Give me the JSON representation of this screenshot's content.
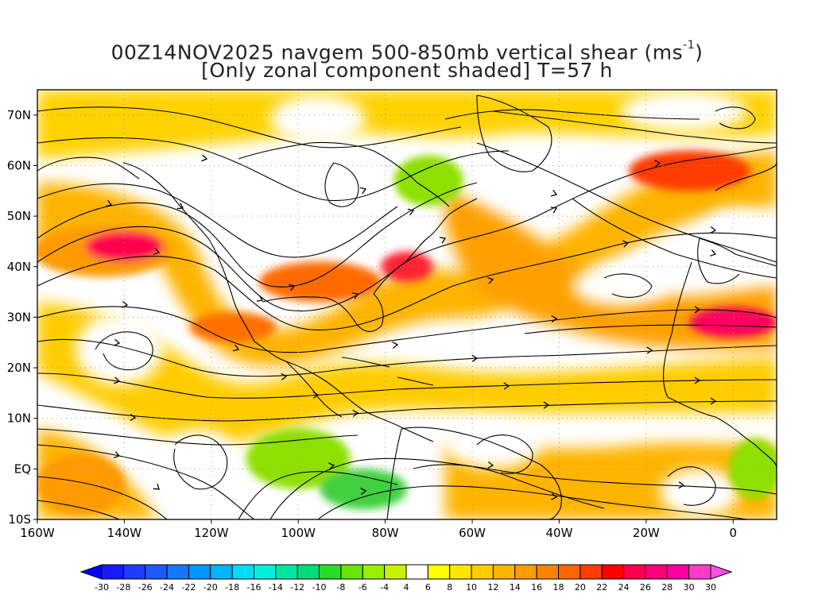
{
  "title": {
    "line1_prefix": "00Z14NOV2025 navgem 500-850mb vertical shear (ms",
    "line1_sup": "-1",
    "line1_suffix": ")",
    "line2": "[Only zonal component shaded] T=57 h"
  },
  "map": {
    "lon_range": [
      -160,
      10
    ],
    "lat_range": [
      -10,
      75
    ],
    "background": "#ffffff",
    "x_ticks": [
      {
        "lon": -160,
        "label": "160W"
      },
      {
        "lon": -140,
        "label": "140W"
      },
      {
        "lon": -120,
        "label": "120W"
      },
      {
        "lon": -100,
        "label": "100W"
      },
      {
        "lon": -80,
        "label": "80W"
      },
      {
        "lon": -60,
        "label": "60W"
      },
      {
        "lon": -40,
        "label": "40W"
      },
      {
        "lon": -20,
        "label": "20W"
      },
      {
        "lon": 0,
        "label": "0"
      }
    ],
    "y_ticks": [
      {
        "lat": 70,
        "label": "70N"
      },
      {
        "lat": 60,
        "label": "60N"
      },
      {
        "lat": 50,
        "label": "50N"
      },
      {
        "lat": 40,
        "label": "40N"
      },
      {
        "lat": 30,
        "label": "30N"
      },
      {
        "lat": 20,
        "label": "20N"
      },
      {
        "lat": 10,
        "label": "10N"
      },
      {
        "lat": 0,
        "label": "EQ"
      },
      {
        "lat": -10,
        "label": "10S"
      }
    ],
    "shading_blobs": [
      {
        "lon": -145,
        "lat": 43,
        "rx": 16,
        "ry": 5,
        "color": "#ff9a00"
      },
      {
        "lon": -140,
        "lat": 44,
        "rx": 9,
        "ry": 3,
        "color": "#ff0050"
      },
      {
        "lon": -95,
        "lat": 37,
        "rx": 14,
        "ry": 4,
        "color": "#ff6a00"
      },
      {
        "lon": -75,
        "lat": 40,
        "rx": 6,
        "ry": 3,
        "color": "#ff2030"
      },
      {
        "lon": -115,
        "lat": 28,
        "rx": 10,
        "ry": 3,
        "color": "#ff7000"
      },
      {
        "lon": 0,
        "lat": 29,
        "rx": 10,
        "ry": 3,
        "color": "#ff0060"
      },
      {
        "lon": -10,
        "lat": 59,
        "rx": 14,
        "ry": 4,
        "color": "#ff3a00"
      },
      {
        "lon": -100,
        "lat": 2,
        "rx": 12,
        "ry": 6,
        "color": "#8ee000"
      },
      {
        "lon": -85,
        "lat": -4,
        "rx": 10,
        "ry": 4,
        "color": "#40d040"
      },
      {
        "lon": -70,
        "lat": 57,
        "rx": 8,
        "ry": 5,
        "color": "#8ee000"
      },
      {
        "lon": 5,
        "lat": 0,
        "rx": 6,
        "ry": 6,
        "color": "#8ee000"
      },
      {
        "lon": -150,
        "lat": -3,
        "rx": 10,
        "ry": 6,
        "color": "#ff9a00"
      }
    ]
  },
  "colorbar": {
    "min_label": "-30",
    "max_label": "30",
    "segments": [
      {
        "label": "-30",
        "color": "#1a1aff"
      },
      {
        "label": "-28",
        "color": "#1e3cff"
      },
      {
        "label": "-26",
        "color": "#1e5aff"
      },
      {
        "label": "-24",
        "color": "#1478ff"
      },
      {
        "label": "-22",
        "color": "#0096ff"
      },
      {
        "label": "-20",
        "color": "#00b4ff"
      },
      {
        "label": "-18",
        "color": "#00dcff"
      },
      {
        "label": "-16",
        "color": "#00f0dc"
      },
      {
        "label": "-14",
        "color": "#00e6a0"
      },
      {
        "label": "-12",
        "color": "#00dc78"
      },
      {
        "label": "-10",
        "color": "#28dc28"
      },
      {
        "label": "-8",
        "color": "#64e600"
      },
      {
        "label": "-6",
        "color": "#96f000"
      },
      {
        "label": "-4",
        "color": "#c8f000"
      },
      {
        "label": "4",
        "color": "#ffffff"
      },
      {
        "label": "6",
        "color": "#ffff00"
      },
      {
        "label": "8",
        "color": "#ffe600"
      },
      {
        "label": "10",
        "color": "#ffcc00"
      },
      {
        "label": "12",
        "color": "#ffb400"
      },
      {
        "label": "14",
        "color": "#ff9c00"
      },
      {
        "label": "16",
        "color": "#ff8200"
      },
      {
        "label": "18",
        "color": "#ff6400"
      },
      {
        "label": "20",
        "color": "#ff3c00"
      },
      {
        "label": "22",
        "color": "#ff0000"
      },
      {
        "label": "24",
        "color": "#ff0050"
      },
      {
        "label": "26",
        "color": "#ff0078"
      },
      {
        "label": "28",
        "color": "#ff00a0"
      },
      {
        "label": "30",
        "color": "#ff3cc8"
      }
    ],
    "left_arrow_color": "#0000ff",
    "right_arrow_color": "#ff50e6"
  }
}
